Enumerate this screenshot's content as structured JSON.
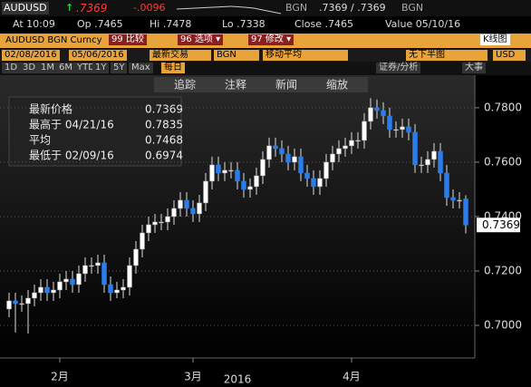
{
  "header": {
    "ticker": "AUDUSD",
    "arrow": "↑",
    "last": ".7369",
    "change": "-.0096",
    "source": "BGN",
    "bid_ask": ".7369 / .7369",
    "source2": "BGN",
    "time": "At 10:09",
    "open": "Op .7465",
    "high": "Hi .7478",
    "low": "Lo .7338",
    "close": "Close .7465",
    "value": "Value 05/10/16"
  },
  "toolbar": {
    "security": "AUDUSD BGN Curncy",
    "compare": "99 比较",
    "options": "96 选项 ▾",
    "modify": "97 修改 ▾",
    "chart_type": "K线图",
    "start": "02/08/2016",
    "end": "05/06/2016",
    "price": "最新交易",
    "price_source": "BGN",
    "ma": "移动平均",
    "lower": "无下半图",
    "currency": "USD",
    "periods": [
      "1D",
      "3D",
      "1M",
      "6M",
      "YTD",
      "1Y",
      "5Y",
      "Max"
    ],
    "freq": "每日",
    "analysis": "证券/分析",
    "events": "大事"
  },
  "chart_tools": [
    "追踪",
    "注释",
    "新闻",
    "缩放"
  ],
  "legend": [
    {
      "label": "最新价格",
      "value": 0.7369
    },
    {
      "label": "最高于 04/21/16",
      "value": 0.7835
    },
    {
      "label": "平均",
      "value": 0.7468
    },
    {
      "label": "最低于 02/09/16",
      "value": 0.6974
    }
  ],
  "chart_data": {
    "type": "candlestick",
    "xlabel": "2016",
    "categories": [
      null,
      null,
      null,
      null,
      null,
      null,
      null,
      null,
      "2月",
      null,
      null,
      null,
      null,
      null,
      null,
      null,
      null,
      null,
      null,
      null,
      null,
      null,
      null,
      null,
      null,
      null,
      null,
      null,
      null,
      "3月",
      null,
      null,
      null,
      null,
      null,
      null,
      null,
      null,
      null,
      null,
      null,
      null,
      null,
      null,
      null,
      null,
      null,
      null,
      null,
      null,
      null,
      null,
      null,
      null,
      "4月",
      null,
      null,
      null,
      null,
      null,
      null,
      null,
      null,
      null,
      null,
      null,
      null,
      null,
      null,
      null,
      null,
      null,
      null
    ],
    "open": [
      0.706,
      0.709,
      0.708,
      0.708,
      0.71,
      0.712,
      0.714,
      0.712,
      0.713,
      0.716,
      0.717,
      0.715,
      0.719,
      0.722,
      0.722,
      0.723,
      0.715,
      0.712,
      0.713,
      0.714,
      0.722,
      0.728,
      0.734,
      0.737,
      0.738,
      0.738,
      0.74,
      0.743,
      0.746,
      0.743,
      0.741,
      0.745,
      0.753,
      0.759,
      0.756,
      0.757,
      0.757,
      0.753,
      0.75,
      0.751,
      0.755,
      0.761,
      0.766,
      0.765,
      0.763,
      0.76,
      0.762,
      0.756,
      0.754,
      0.751,
      0.754,
      0.76,
      0.763,
      0.765,
      0.766,
      0.768,
      0.768,
      0.775,
      0.78,
      0.779,
      0.777,
      0.772,
      0.772,
      0.773,
      0.771,
      0.759,
      0.759,
      0.761,
      0.764,
      0.756,
      0.747,
      0.746,
      0.7465
    ],
    "high": [
      0.712,
      0.712,
      0.711,
      0.713,
      0.715,
      0.717,
      0.717,
      0.716,
      0.719,
      0.72,
      0.72,
      0.722,
      0.725,
      0.725,
      0.726,
      0.726,
      0.718,
      0.716,
      0.717,
      0.725,
      0.731,
      0.737,
      0.74,
      0.741,
      0.741,
      0.743,
      0.746,
      0.749,
      0.749,
      0.746,
      0.748,
      0.756,
      0.762,
      0.762,
      0.76,
      0.76,
      0.76,
      0.756,
      0.754,
      0.758,
      0.764,
      0.769,
      0.769,
      0.768,
      0.766,
      0.765,
      0.765,
      0.759,
      0.757,
      0.757,
      0.763,
      0.766,
      0.768,
      0.769,
      0.771,
      0.771,
      0.778,
      0.7835,
      0.783,
      0.782,
      0.78,
      0.775,
      0.776,
      0.776,
      0.774,
      0.762,
      0.764,
      0.767,
      0.767,
      0.759,
      0.75,
      0.749,
      0.7478
    ],
    "low": [
      0.703,
      0.6974,
      0.705,
      0.697,
      0.707,
      0.709,
      0.709,
      0.709,
      0.71,
      0.713,
      0.712,
      0.712,
      0.716,
      0.719,
      0.719,
      0.712,
      0.709,
      0.71,
      0.71,
      0.711,
      0.719,
      0.725,
      0.731,
      0.734,
      0.735,
      0.735,
      0.737,
      0.74,
      0.74,
      0.738,
      0.738,
      0.742,
      0.75,
      0.753,
      0.753,
      0.754,
      0.75,
      0.747,
      0.747,
      0.748,
      0.752,
      0.758,
      0.762,
      0.76,
      0.757,
      0.757,
      0.753,
      0.751,
      0.748,
      0.748,
      0.751,
      0.757,
      0.76,
      0.762,
      0.763,
      0.765,
      0.765,
      0.772,
      0.776,
      0.774,
      0.769,
      0.769,
      0.769,
      0.768,
      0.756,
      0.756,
      0.756,
      0.758,
      0.753,
      0.744,
      0.743,
      0.743,
      0.7338
    ],
    "close": [
      0.709,
      0.708,
      0.708,
      0.71,
      0.712,
      0.714,
      0.712,
      0.713,
      0.716,
      0.717,
      0.715,
      0.719,
      0.722,
      0.722,
      0.723,
      0.715,
      0.712,
      0.713,
      0.714,
      0.722,
      0.728,
      0.734,
      0.737,
      0.738,
      0.738,
      0.74,
      0.743,
      0.746,
      0.743,
      0.741,
      0.745,
      0.753,
      0.759,
      0.756,
      0.757,
      0.757,
      0.753,
      0.75,
      0.751,
      0.755,
      0.761,
      0.766,
      0.765,
      0.763,
      0.76,
      0.762,
      0.756,
      0.754,
      0.751,
      0.754,
      0.76,
      0.763,
      0.765,
      0.766,
      0.768,
      0.768,
      0.775,
      0.78,
      0.779,
      0.777,
      0.772,
      0.772,
      0.773,
      0.771,
      0.759,
      0.759,
      0.761,
      0.764,
      0.756,
      0.747,
      0.746,
      0.746,
      0.7369
    ],
    "up_color": "#ffffff",
    "down_color": "#2b7de9",
    "last_price": 0.7369,
    "ylim": [
      0.688,
      0.7913
    ],
    "yticks": [
      {
        "value": 0.7,
        "label": "0.7000"
      },
      {
        "value": 0.72,
        "label": "0.7200"
      },
      {
        "value": 0.74,
        "label": "0.7400"
      },
      {
        "value": 0.76,
        "label": "0.7600"
      },
      {
        "value": 0.78,
        "label": "0.7800"
      }
    ],
    "grid": true
  }
}
